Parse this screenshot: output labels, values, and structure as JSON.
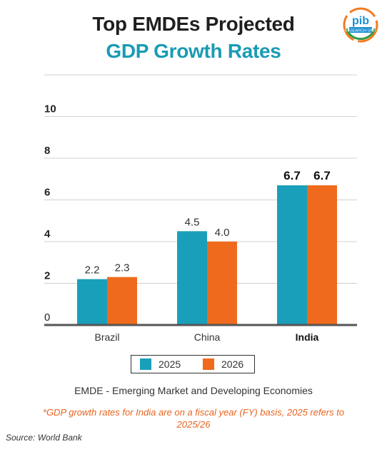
{
  "title_line1": "Top EMDEs Projected",
  "title_line2": "GDP Growth Rates",
  "logo": {
    "name": "pib-research-unit-logo",
    "colors": [
      "#f47b20",
      "#1a8fd1",
      "#2e9a47"
    ]
  },
  "colors": {
    "series_2025": "#1a9fba",
    "series_2026": "#f06a1d",
    "title_accent": "#1a9bb3",
    "footnote": "#e8641f"
  },
  "legend": [
    {
      "label": "2025"
    },
    {
      "label": "2026"
    }
  ],
  "note": "EMDE - Emerging Market and Developing Economies",
  "footnote": "*GDP growth rates for India are on a fiscal year (FY) basis, 2025 refers to 2025/26",
  "source": "Source: World Bank",
  "chart_data": {
    "type": "bar",
    "title": "Top EMDEs Projected GDP Growth Rates",
    "categories": [
      "Brazil",
      "China",
      "India"
    ],
    "highlight_category": "India",
    "series": [
      {
        "name": "2025",
        "values": [
          2.2,
          4.5,
          6.7
        ]
      },
      {
        "name": "2026",
        "values": [
          2.3,
          4.0,
          6.7
        ]
      }
    ],
    "data_labels": [
      [
        "2.2",
        "4.5",
        "6.7"
      ],
      [
        "2.3",
        "4.0",
        "6.7"
      ]
    ],
    "yticks": [
      "0",
      "2",
      "4",
      "6",
      "8",
      "10"
    ],
    "ylim": [
      0,
      12
    ],
    "grid": true,
    "legend_position": "bottom"
  }
}
